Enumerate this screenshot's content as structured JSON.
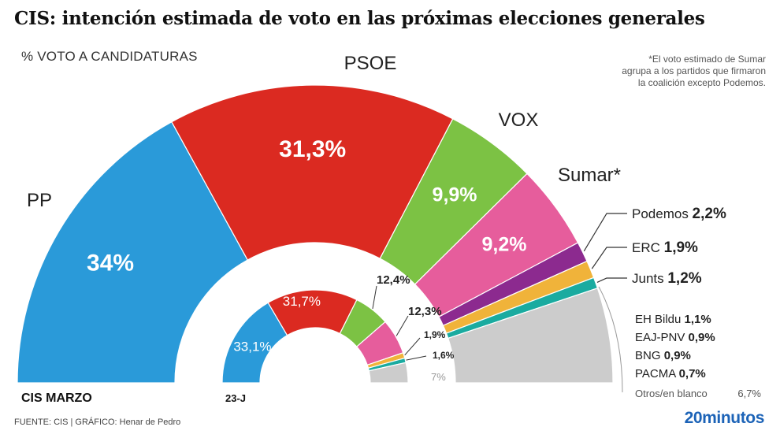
{
  "header": {
    "title": "CIS: intención estimada de voto en las próximas elecciones generales",
    "subtitle": "% VOTO A CANDIDATURAS",
    "note_lines": [
      "*El voto estimado de Sumar",
      "agrupa a los partidos que firmaron",
      "la coalición excepto Podemos."
    ]
  },
  "footer": {
    "source": "FUENTE: CIS   |  GRÁFICO: Henar de Pedro",
    "brand": "20minutos"
  },
  "chart_data": [
    {
      "type": "pie",
      "name": "CIS MARZO",
      "shape": "semicircle",
      "series": [
        {
          "party": "PP",
          "value": 34,
          "label": "34%",
          "color": "#2a9ad9"
        },
        {
          "party": "PSOE",
          "value": 31.3,
          "label": "31,3%",
          "color": "#db2a21"
        },
        {
          "party": "VOX",
          "value": 9.9,
          "label": "9,9%",
          "color": "#7cc244"
        },
        {
          "party": "Sumar*",
          "value": 9.2,
          "label": "9,2%",
          "color": "#e65d9c"
        },
        {
          "party": "Podemos",
          "value": 2.2,
          "label": "2,2%",
          "color": "#8c2a8f"
        },
        {
          "party": "ERC",
          "value": 1.9,
          "label": "1,9%",
          "color": "#f0b33a"
        },
        {
          "party": "Junts",
          "value": 1.2,
          "label": "1,2%",
          "color": "#1aaba0"
        },
        {
          "party": "Otros",
          "value": 10.3,
          "label": "",
          "color": "#cccccc"
        }
      ],
      "small_parties": [
        {
          "party": "EH Bildu",
          "label": "1,1%"
        },
        {
          "party": "EAJ-PNV",
          "label": "0,9%"
        },
        {
          "party": "BNG",
          "label": "0,9%"
        },
        {
          "party": "PACMA",
          "label": "0,7%"
        },
        {
          "party": "Otros/en blanco",
          "label": "6,7%"
        }
      ]
    },
    {
      "type": "pie",
      "name": "23-J",
      "shape": "semicircle",
      "series": [
        {
          "party": "PP",
          "value": 33.1,
          "label": "33,1%",
          "color": "#2a9ad9"
        },
        {
          "party": "PSOE",
          "value": 31.7,
          "label": "31,7%",
          "color": "#db2a21"
        },
        {
          "party": "VOX",
          "value": 12.4,
          "label": "12,4%",
          "color": "#7cc244"
        },
        {
          "party": "Sumar*",
          "value": 12.3,
          "label": "12,3%",
          "color": "#e65d9c"
        },
        {
          "party": "ERC",
          "value": 1.9,
          "label": "1,9%",
          "color": "#f0b33a"
        },
        {
          "party": "Junts",
          "value": 1.6,
          "label": "1,6%",
          "color": "#1aaba0"
        },
        {
          "party": "Otros",
          "value": 7,
          "label": "7%",
          "color": "#cccccc"
        }
      ]
    }
  ]
}
